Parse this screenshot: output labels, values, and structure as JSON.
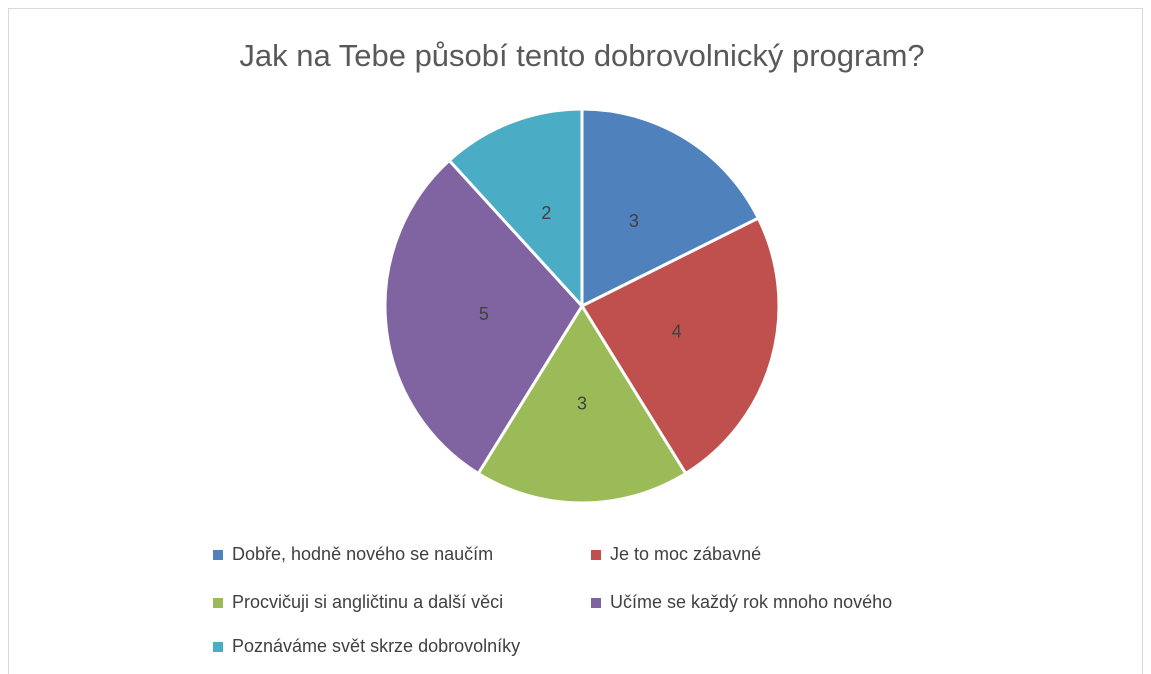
{
  "chart_data": {
    "type": "pie",
    "title": "Jak na Tebe působí tento dobrovolnický program?",
    "categories": [
      "Dobře, hodně nového se naučím",
      "Je to moc zábavné",
      "Procvičuji si angličtinu a další věci",
      "Učíme se každý rok mnoho nového",
      "Poznáváme svět skrze dobrovolníky"
    ],
    "values": [
      3,
      4,
      3,
      5,
      2
    ],
    "colors": [
      "#4f81bd",
      "#c0504d",
      "#9bbb59",
      "#8064a2",
      "#4bacc6"
    ],
    "legend": "bottom"
  }
}
